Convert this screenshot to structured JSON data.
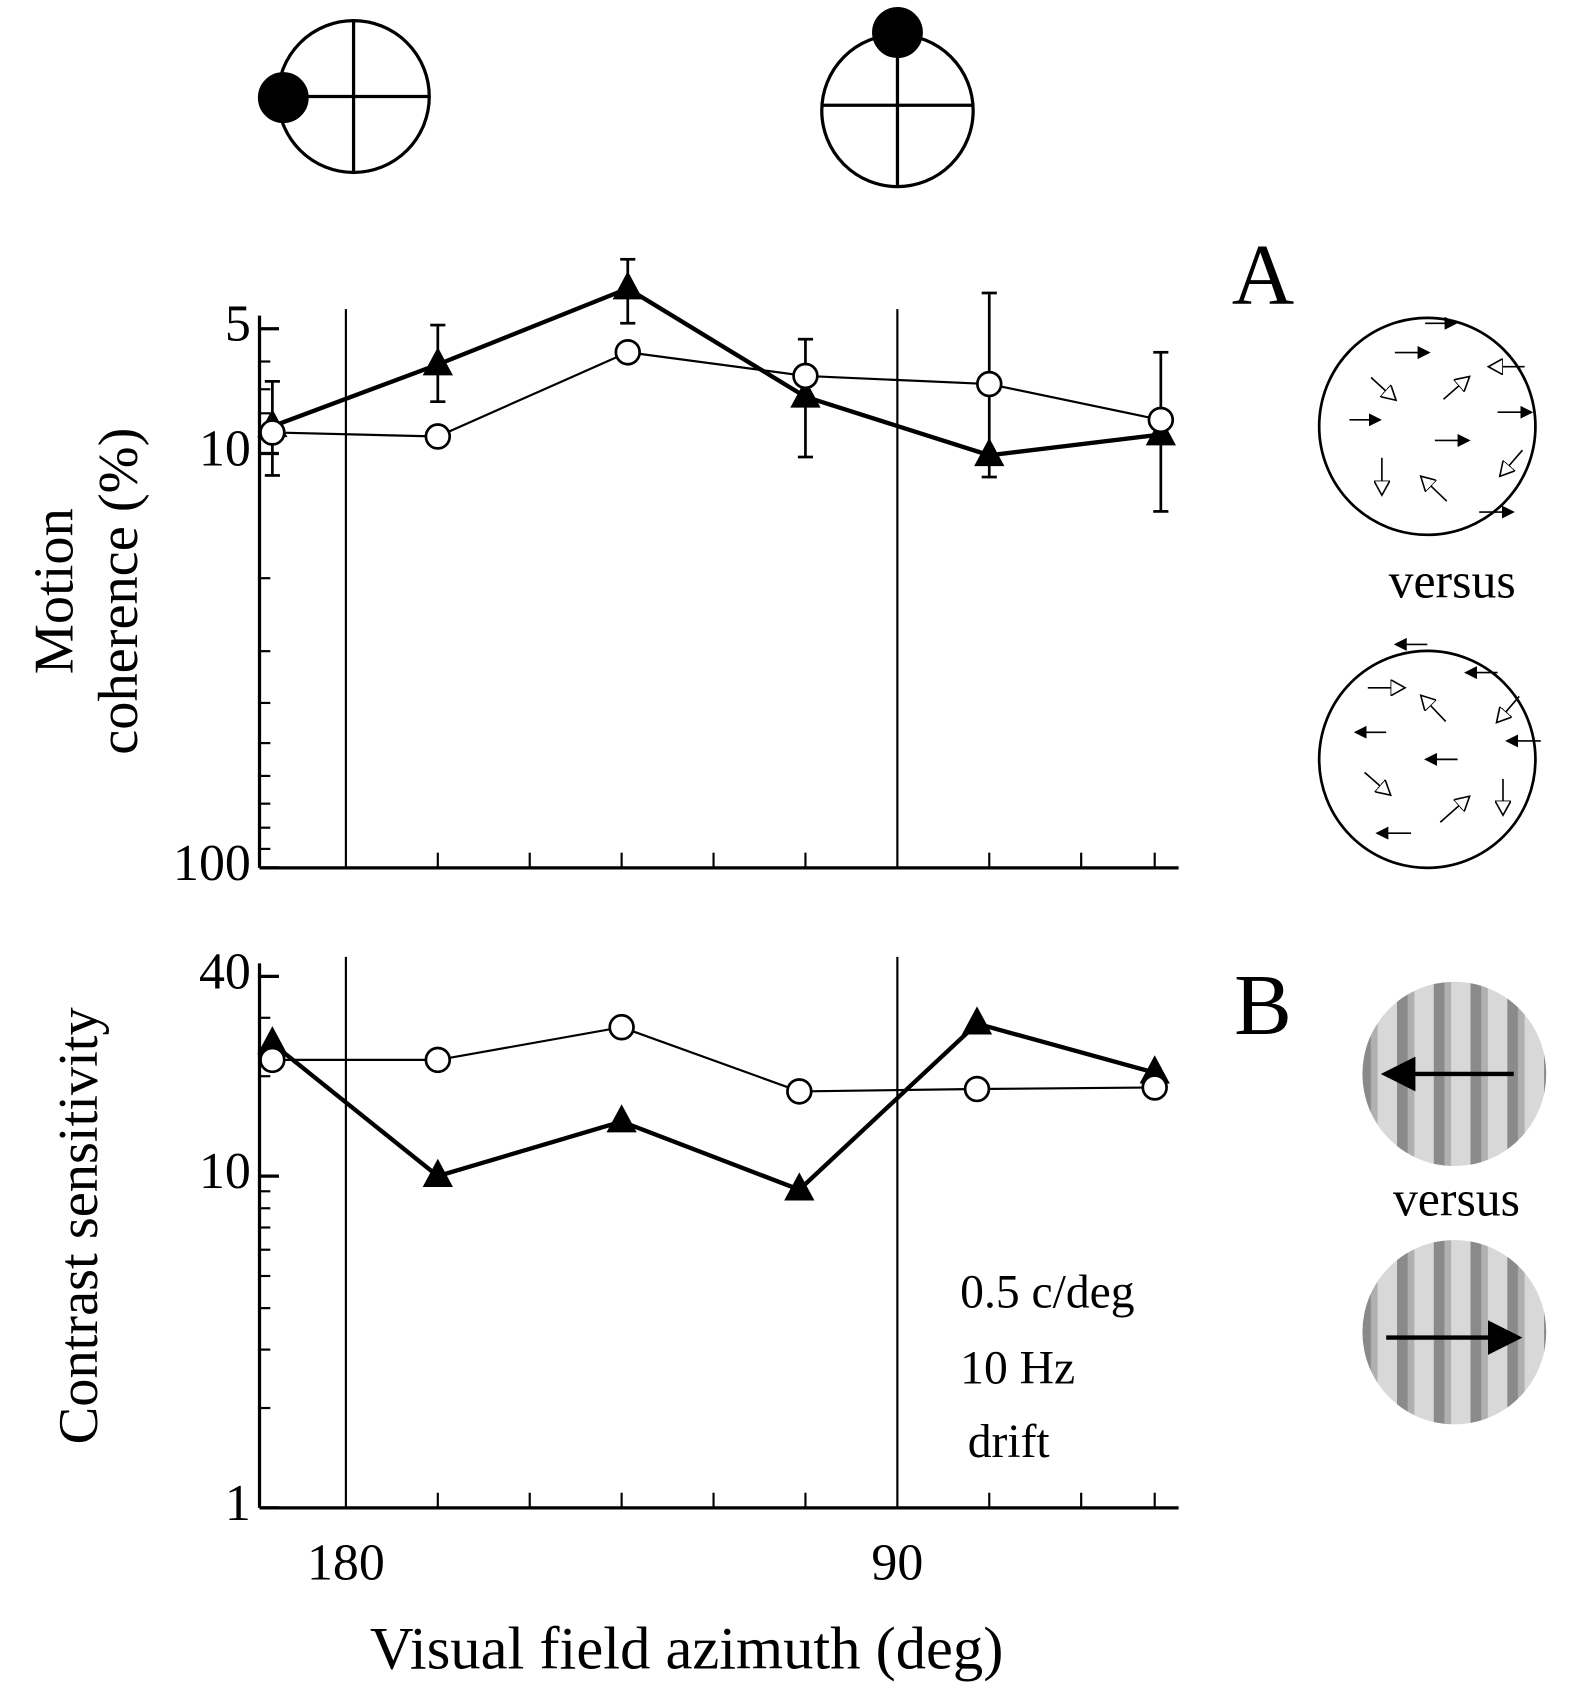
{
  "chart_data": [
    {
      "type": "line",
      "panel_label": "A",
      "ylabel_lines": [
        "Motion",
        "coherence (%)"
      ],
      "stimulus_label": "versus",
      "x": [
        192,
        165,
        134,
        105,
        75,
        47
      ],
      "xlim": [
        194.1,
        44.1
      ],
      "xticks": [
        180,
        90
      ],
      "xminorticks": [
        165,
        150,
        135,
        120,
        105,
        75,
        60,
        48
      ],
      "yscale": "log",
      "ylim": [
        100,
        5
      ],
      "yticks": [
        5,
        10,
        100
      ],
      "yminorticks": [
        6,
        7,
        8,
        9,
        20,
        30,
        40,
        50,
        60,
        70,
        80,
        90
      ],
      "series": [
        {
          "marker": "triangle",
          "color": "#000000",
          "line_width": 4,
          "values": [
            8.6,
            6.1,
            4.0,
            7.3,
            10.1,
            9.0
          ],
          "error_bars": [
            [
              6.7,
              11.3
            ],
            [
              4.9,
              7.5
            ],
            [
              3.4,
              4.85
            ],
            [
              5.3,
              10.2
            ],
            [
              4.1,
              11.4
            ],
            [
              5.7,
              13.8
            ]
          ]
        },
        {
          "marker": "circle",
          "color": "#000000",
          "line_width": 2,
          "values": [
            8.9,
            9.1,
            5.7,
            6.5,
            6.8,
            8.3
          ]
        }
      ]
    },
    {
      "type": "line",
      "panel_label": "B",
      "ylabel_lines": [
        "Contrast sensitivity"
      ],
      "stimulus_label": "versus",
      "xlabel": "Visual field azimuth (deg)",
      "annotations": [
        "0.5 c/deg",
        "10 Hz",
        "drift"
      ],
      "x": [
        192,
        165,
        135,
        106,
        77,
        48
      ],
      "xlim": [
        194.1,
        44.1
      ],
      "xticks": [
        180,
        90
      ],
      "xminorticks": [
        165,
        150,
        135,
        120,
        105,
        75,
        60,
        48
      ],
      "yscale": "log",
      "ylim": [
        1,
        40
      ],
      "yticks": [
        1,
        10,
        40
      ],
      "yminorticks": [
        2,
        3,
        4,
        5,
        6,
        7,
        8,
        9,
        20,
        30
      ],
      "series": [
        {
          "marker": "triangle",
          "color": "#000000",
          "line_width": 4,
          "values": [
            25.1,
            10,
            14.6,
            9.1,
            28.8,
            20.5
          ]
        },
        {
          "marker": "circle",
          "color": "#000000",
          "line_width": 2,
          "values": [
            22.4,
            22.4,
            28.1,
            18.0,
            18.3,
            18.5
          ]
        }
      ]
    }
  ]
}
